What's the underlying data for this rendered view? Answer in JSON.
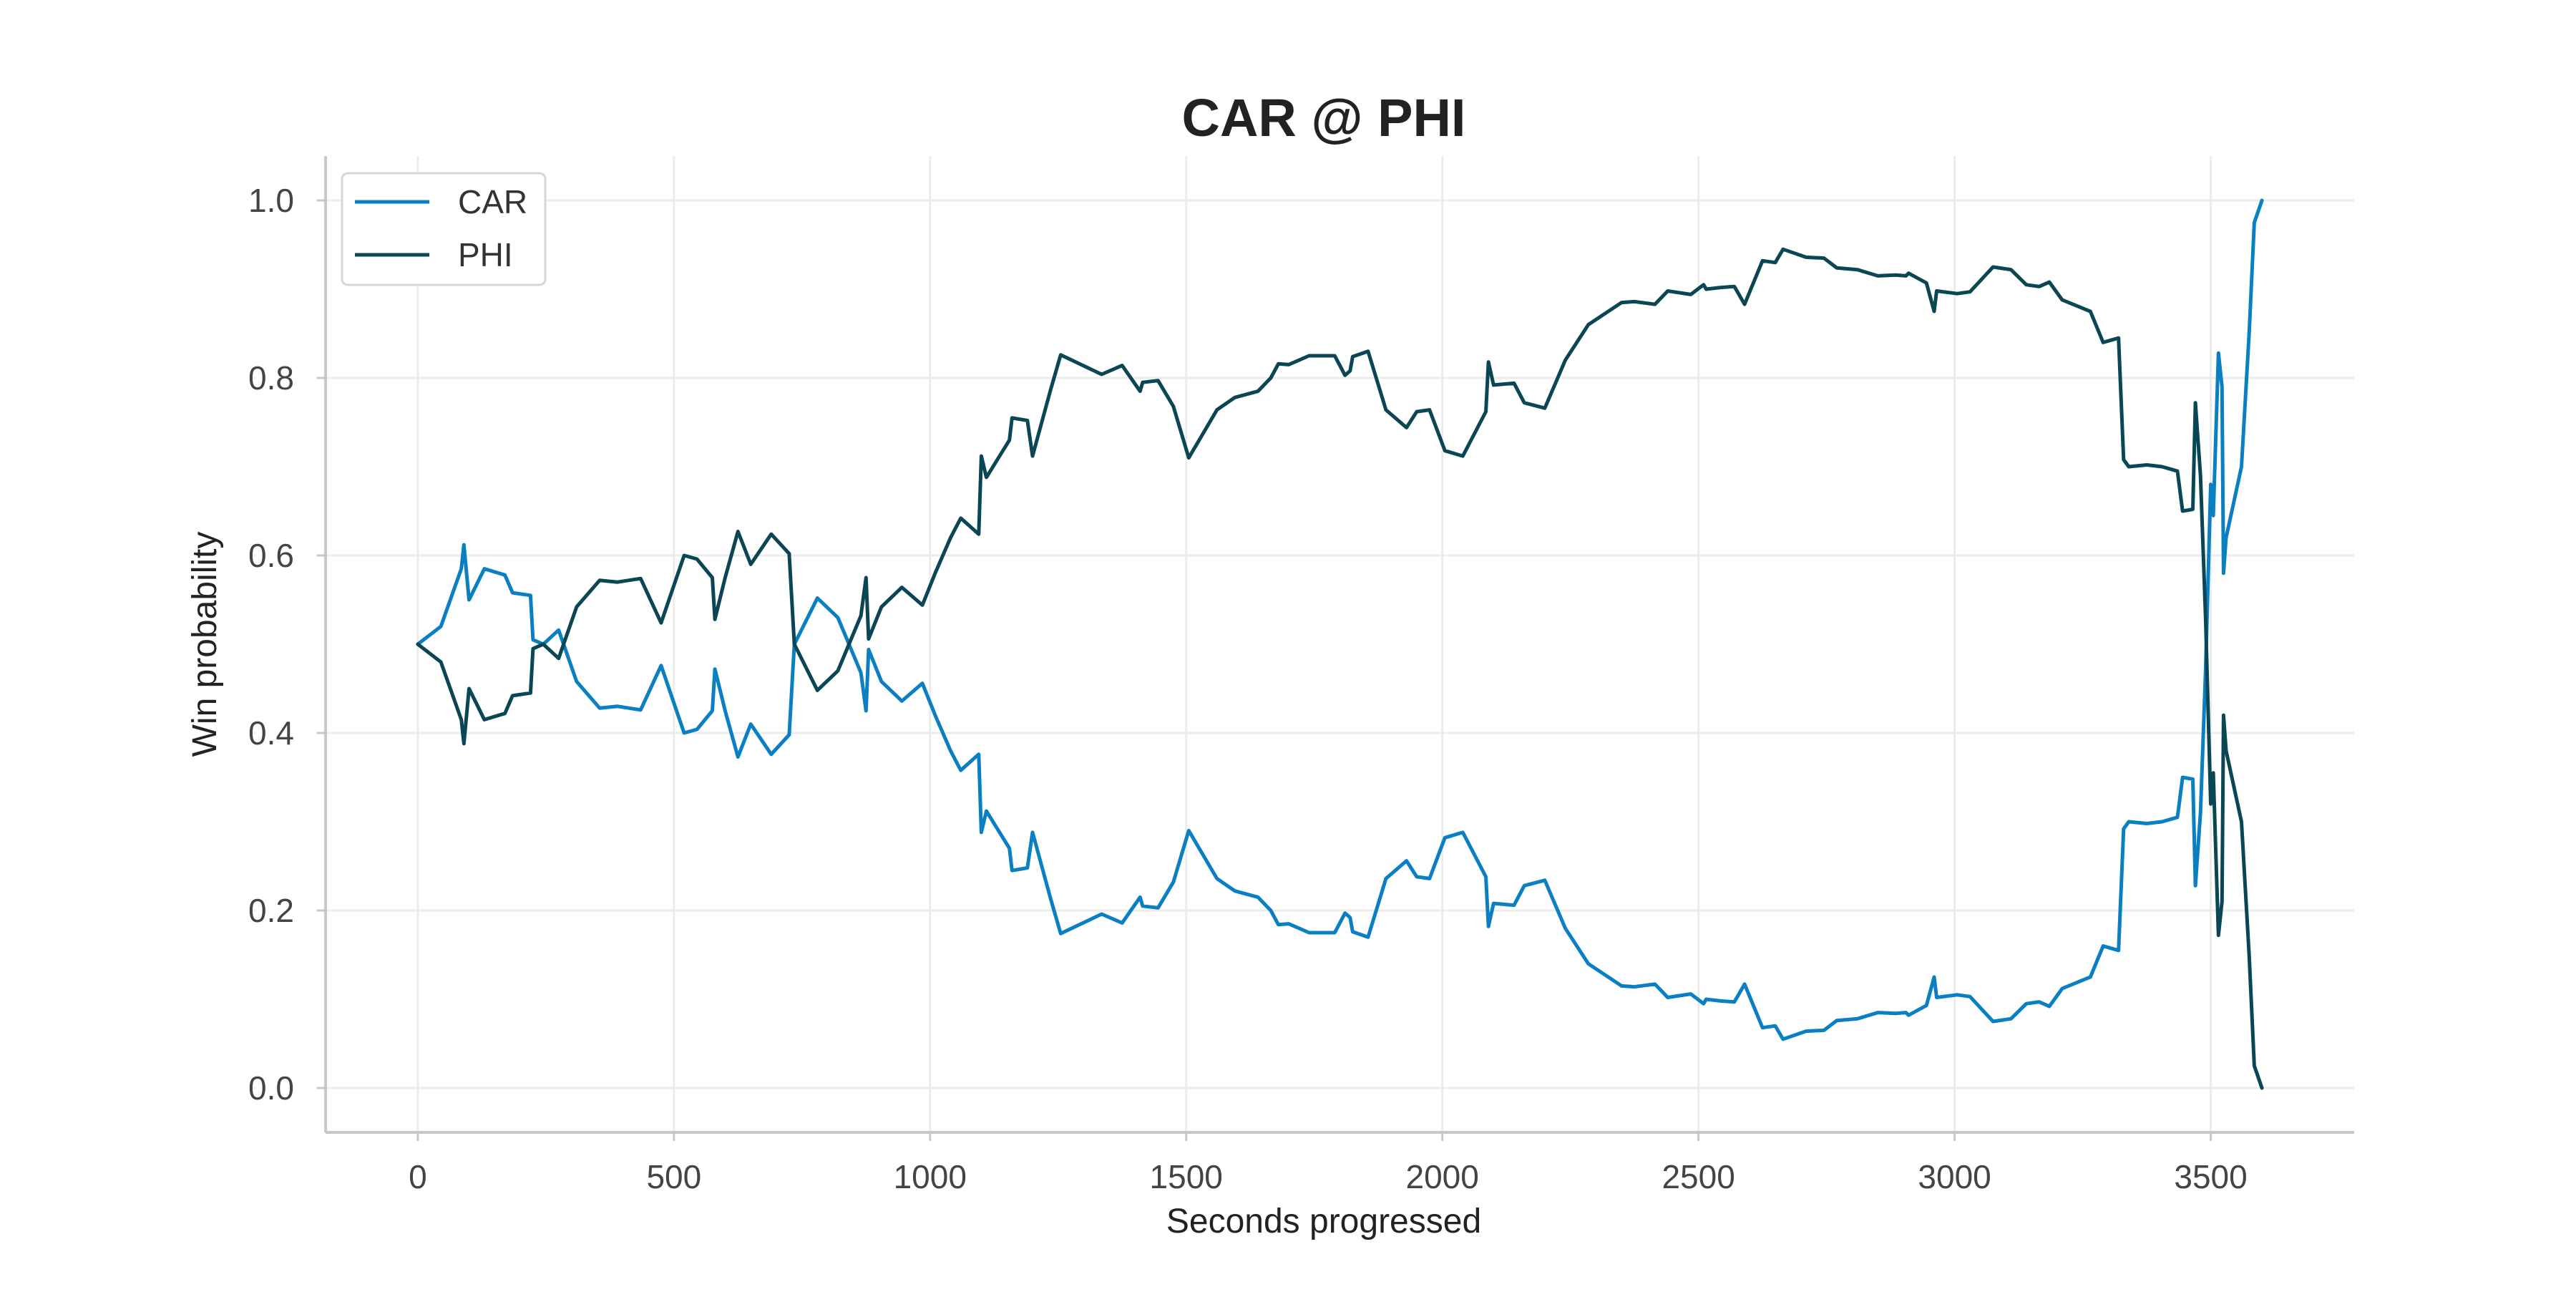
{
  "chart_data": {
    "type": "line",
    "title": "CAR @ PHI",
    "xlabel": "Seconds progressed",
    "ylabel": "Win probability",
    "xlim": [
      -180,
      3780
    ],
    "ylim": [
      -0.05,
      1.05
    ],
    "xticks": [
      0,
      500,
      1000,
      1500,
      2000,
      2500,
      3000,
      3500
    ],
    "yticks": [
      0.0,
      0.2,
      0.4,
      0.6,
      0.8,
      1.0
    ],
    "xtick_labels": [
      "0",
      "500",
      "1000",
      "1500",
      "2000",
      "2500",
      "3000",
      "3500"
    ],
    "ytick_labels": [
      "0.0",
      "0.2",
      "0.4",
      "0.6",
      "0.8",
      "1.0"
    ],
    "grid": true,
    "legend_position": "top-left",
    "series": [
      {
        "name": "CAR",
        "color": "#0a7fc2",
        "points": [
          [
            0,
            0.5
          ],
          [
            45,
            0.52
          ],
          [
            85,
            0.585
          ],
          [
            90,
            0.612
          ],
          [
            100,
            0.55
          ],
          [
            130,
            0.585
          ],
          [
            170,
            0.578
          ],
          [
            185,
            0.558
          ],
          [
            220,
            0.555
          ],
          [
            225,
            0.505
          ],
          [
            245,
            0.5
          ],
          [
            275,
            0.516
          ],
          [
            310,
            0.458
          ],
          [
            355,
            0.428
          ],
          [
            390,
            0.43
          ],
          [
            435,
            0.426
          ],
          [
            475,
            0.476
          ],
          [
            520,
            0.4
          ],
          [
            545,
            0.404
          ],
          [
            575,
            0.425
          ],
          [
            580,
            0.472
          ],
          [
            600,
            0.425
          ],
          [
            625,
            0.373
          ],
          [
            650,
            0.41
          ],
          [
            690,
            0.376
          ],
          [
            725,
            0.398
          ],
          [
            735,
            0.5
          ],
          [
            780,
            0.552
          ],
          [
            820,
            0.53
          ],
          [
            865,
            0.468
          ],
          [
            875,
            0.425
          ],
          [
            880,
            0.494
          ],
          [
            905,
            0.458
          ],
          [
            945,
            0.436
          ],
          [
            985,
            0.456
          ],
          [
            1010,
            0.42
          ],
          [
            1040,
            0.38
          ],
          [
            1060,
            0.358
          ],
          [
            1095,
            0.376
          ],
          [
            1100,
            0.288
          ],
          [
            1110,
            0.312
          ],
          [
            1155,
            0.27
          ],
          [
            1160,
            0.245
          ],
          [
            1190,
            0.248
          ],
          [
            1200,
            0.288
          ],
          [
            1235,
            0.214
          ],
          [
            1255,
            0.174
          ],
          [
            1335,
            0.196
          ],
          [
            1375,
            0.186
          ],
          [
            1410,
            0.215
          ],
          [
            1415,
            0.205
          ],
          [
            1445,
            0.203
          ],
          [
            1475,
            0.232
          ],
          [
            1505,
            0.29
          ],
          [
            1560,
            0.236
          ],
          [
            1595,
            0.222
          ],
          [
            1640,
            0.215
          ],
          [
            1665,
            0.2
          ],
          [
            1680,
            0.184
          ],
          [
            1700,
            0.185
          ],
          [
            1740,
            0.175
          ],
          [
            1790,
            0.175
          ],
          [
            1810,
            0.197
          ],
          [
            1820,
            0.192
          ],
          [
            1825,
            0.176
          ],
          [
            1855,
            0.17
          ],
          [
            1890,
            0.236
          ],
          [
            1930,
            0.256
          ],
          [
            1950,
            0.238
          ],
          [
            1975,
            0.236
          ],
          [
            2005,
            0.282
          ],
          [
            2040,
            0.288
          ],
          [
            2085,
            0.238
          ],
          [
            2090,
            0.182
          ],
          [
            2100,
            0.208
          ],
          [
            2140,
            0.206
          ],
          [
            2160,
            0.228
          ],
          [
            2200,
            0.234
          ],
          [
            2240,
            0.18
          ],
          [
            2285,
            0.14
          ],
          [
            2350,
            0.115
          ],
          [
            2375,
            0.114
          ],
          [
            2415,
            0.117
          ],
          [
            2440,
            0.102
          ],
          [
            2485,
            0.106
          ],
          [
            2510,
            0.095
          ],
          [
            2515,
            0.1
          ],
          [
            2545,
            0.098
          ],
          [
            2570,
            0.097
          ],
          [
            2590,
            0.117
          ],
          [
            2625,
            0.068
          ],
          [
            2650,
            0.07
          ],
          [
            2665,
            0.055
          ],
          [
            2710,
            0.064
          ],
          [
            2745,
            0.065
          ],
          [
            2770,
            0.076
          ],
          [
            2810,
            0.078
          ],
          [
            2850,
            0.085
          ],
          [
            2885,
            0.084
          ],
          [
            2905,
            0.085
          ],
          [
            2910,
            0.082
          ],
          [
            2945,
            0.093
          ],
          [
            2960,
            0.125
          ],
          [
            2965,
            0.102
          ],
          [
            3005,
            0.105
          ],
          [
            3030,
            0.103
          ],
          [
            3075,
            0.075
          ],
          [
            3110,
            0.078
          ],
          [
            3140,
            0.095
          ],
          [
            3165,
            0.097
          ],
          [
            3185,
            0.092
          ],
          [
            3210,
            0.112
          ],
          [
            3265,
            0.125
          ],
          [
            3290,
            0.16
          ],
          [
            3320,
            0.155
          ],
          [
            3330,
            0.292
          ],
          [
            3340,
            0.3
          ],
          [
            3375,
            0.298
          ],
          [
            3405,
            0.3
          ],
          [
            3435,
            0.305
          ],
          [
            3445,
            0.35
          ],
          [
            3465,
            0.348
          ],
          [
            3470,
            0.228
          ],
          [
            3480,
            0.31
          ],
          [
            3490,
            0.472
          ],
          [
            3500,
            0.68
          ],
          [
            3505,
            0.645
          ],
          [
            3515,
            0.828
          ],
          [
            3522,
            0.79
          ],
          [
            3525,
            0.58
          ],
          [
            3530,
            0.62
          ],
          [
            3560,
            0.7
          ],
          [
            3575,
            0.85
          ],
          [
            3585,
            0.975
          ],
          [
            3600,
            1.0
          ]
        ]
      },
      {
        "name": "PHI",
        "color": "#0b4654",
        "points": [
          [
            0,
            0.5
          ],
          [
            45,
            0.48
          ],
          [
            85,
            0.415
          ],
          [
            90,
            0.388
          ],
          [
            100,
            0.45
          ],
          [
            130,
            0.415
          ],
          [
            170,
            0.422
          ],
          [
            185,
            0.442
          ],
          [
            220,
            0.445
          ],
          [
            225,
            0.495
          ],
          [
            245,
            0.5
          ],
          [
            275,
            0.484
          ],
          [
            310,
            0.542
          ],
          [
            355,
            0.572
          ],
          [
            390,
            0.57
          ],
          [
            435,
            0.574
          ],
          [
            475,
            0.524
          ],
          [
            520,
            0.6
          ],
          [
            545,
            0.596
          ],
          [
            575,
            0.575
          ],
          [
            580,
            0.528
          ],
          [
            600,
            0.575
          ],
          [
            625,
            0.627
          ],
          [
            650,
            0.59
          ],
          [
            690,
            0.624
          ],
          [
            725,
            0.602
          ],
          [
            735,
            0.5
          ],
          [
            780,
            0.448
          ],
          [
            820,
            0.47
          ],
          [
            865,
            0.532
          ],
          [
            875,
            0.575
          ],
          [
            880,
            0.506
          ],
          [
            905,
            0.542
          ],
          [
            945,
            0.564
          ],
          [
            985,
            0.544
          ],
          [
            1010,
            0.58
          ],
          [
            1040,
            0.62
          ],
          [
            1060,
            0.642
          ],
          [
            1095,
            0.624
          ],
          [
            1100,
            0.712
          ],
          [
            1110,
            0.688
          ],
          [
            1155,
            0.73
          ],
          [
            1160,
            0.755
          ],
          [
            1190,
            0.752
          ],
          [
            1200,
            0.712
          ],
          [
            1235,
            0.786
          ],
          [
            1255,
            0.826
          ],
          [
            1335,
            0.804
          ],
          [
            1375,
            0.814
          ],
          [
            1410,
            0.785
          ],
          [
            1415,
            0.795
          ],
          [
            1445,
            0.797
          ],
          [
            1475,
            0.768
          ],
          [
            1505,
            0.71
          ],
          [
            1560,
            0.764
          ],
          [
            1595,
            0.778
          ],
          [
            1640,
            0.785
          ],
          [
            1665,
            0.8
          ],
          [
            1680,
            0.816
          ],
          [
            1700,
            0.815
          ],
          [
            1740,
            0.825
          ],
          [
            1790,
            0.825
          ],
          [
            1810,
            0.803
          ],
          [
            1820,
            0.808
          ],
          [
            1825,
            0.824
          ],
          [
            1855,
            0.83
          ],
          [
            1890,
            0.764
          ],
          [
            1930,
            0.744
          ],
          [
            1950,
            0.762
          ],
          [
            1975,
            0.764
          ],
          [
            2005,
            0.718
          ],
          [
            2040,
            0.712
          ],
          [
            2085,
            0.762
          ],
          [
            2090,
            0.818
          ],
          [
            2100,
            0.792
          ],
          [
            2140,
            0.794
          ],
          [
            2160,
            0.772
          ],
          [
            2200,
            0.766
          ],
          [
            2240,
            0.82
          ],
          [
            2285,
            0.86
          ],
          [
            2350,
            0.885
          ],
          [
            2375,
            0.886
          ],
          [
            2415,
            0.883
          ],
          [
            2440,
            0.898
          ],
          [
            2485,
            0.894
          ],
          [
            2510,
            0.905
          ],
          [
            2515,
            0.9
          ],
          [
            2545,
            0.902
          ],
          [
            2570,
            0.903
          ],
          [
            2590,
            0.883
          ],
          [
            2625,
            0.932
          ],
          [
            2650,
            0.93
          ],
          [
            2665,
            0.945
          ],
          [
            2710,
            0.936
          ],
          [
            2745,
            0.935
          ],
          [
            2770,
            0.924
          ],
          [
            2810,
            0.922
          ],
          [
            2850,
            0.915
          ],
          [
            2885,
            0.916
          ],
          [
            2905,
            0.915
          ],
          [
            2910,
            0.918
          ],
          [
            2945,
            0.907
          ],
          [
            2960,
            0.875
          ],
          [
            2965,
            0.898
          ],
          [
            3005,
            0.895
          ],
          [
            3030,
            0.897
          ],
          [
            3075,
            0.925
          ],
          [
            3110,
            0.922
          ],
          [
            3140,
            0.905
          ],
          [
            3165,
            0.903
          ],
          [
            3185,
            0.908
          ],
          [
            3210,
            0.888
          ],
          [
            3265,
            0.875
          ],
          [
            3290,
            0.84
          ],
          [
            3320,
            0.845
          ],
          [
            3330,
            0.708
          ],
          [
            3340,
            0.7
          ],
          [
            3375,
            0.702
          ],
          [
            3405,
            0.7
          ],
          [
            3435,
            0.695
          ],
          [
            3445,
            0.65
          ],
          [
            3465,
            0.652
          ],
          [
            3470,
            0.772
          ],
          [
            3480,
            0.69
          ],
          [
            3490,
            0.528
          ],
          [
            3500,
            0.32
          ],
          [
            3505,
            0.355
          ],
          [
            3515,
            0.172
          ],
          [
            3522,
            0.21
          ],
          [
            3525,
            0.42
          ],
          [
            3530,
            0.38
          ],
          [
            3560,
            0.3
          ],
          [
            3575,
            0.15
          ],
          [
            3585,
            0.025
          ],
          [
            3600,
            0.0
          ]
        ]
      }
    ]
  }
}
